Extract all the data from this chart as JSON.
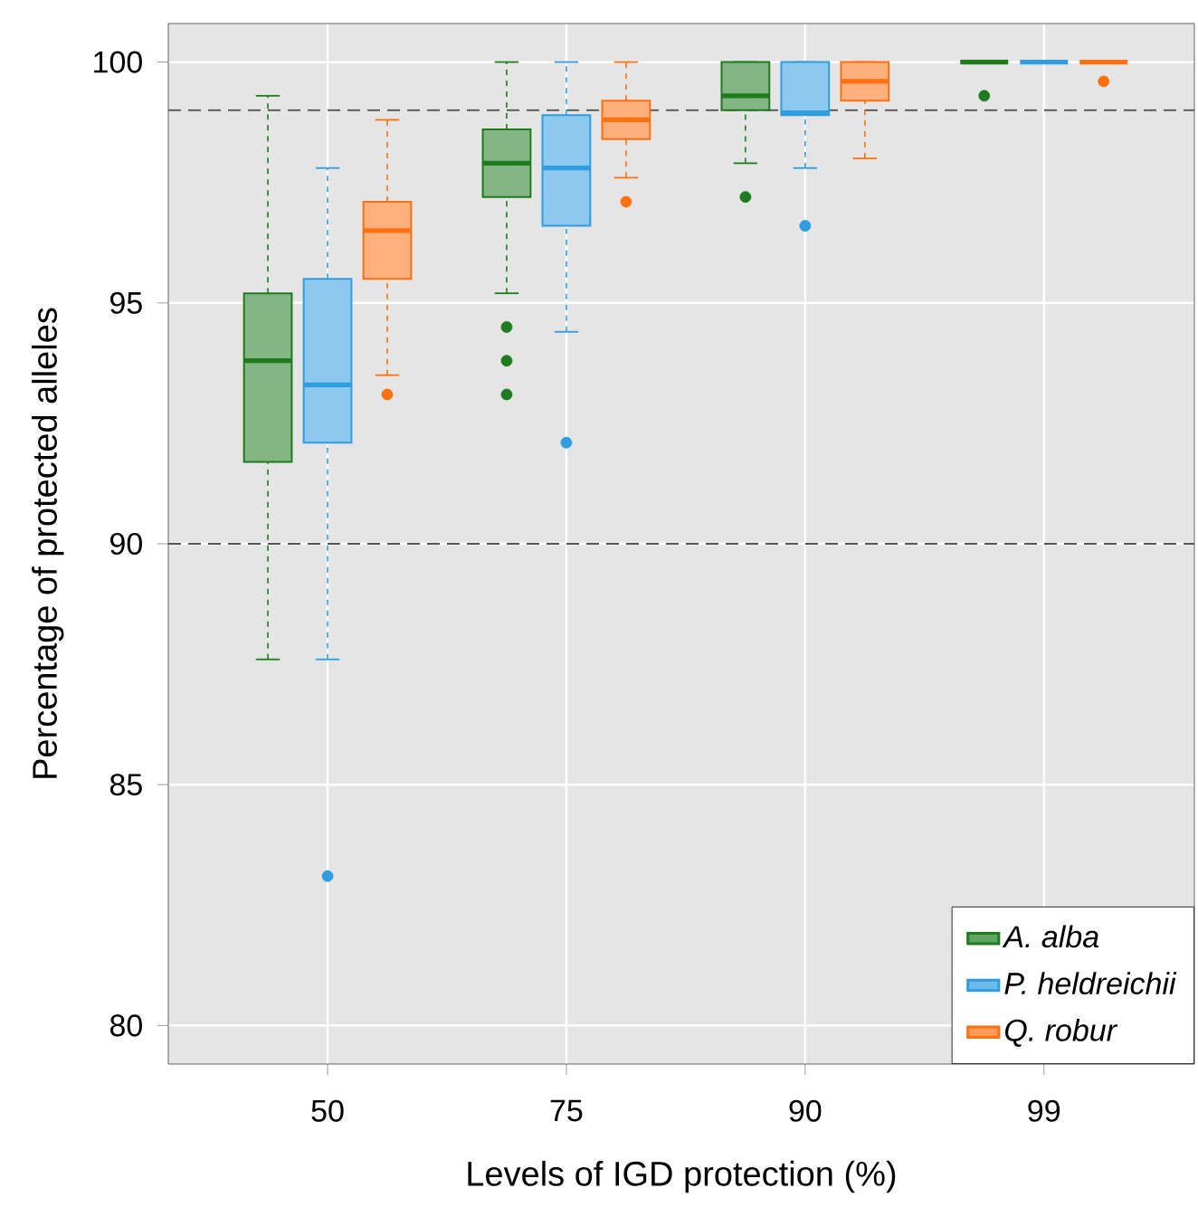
{
  "chart_data": {
    "type": "box",
    "xlabel": "Levels of IGD protection (%)",
    "ylabel": "Percentage of protected alleles",
    "categories": [
      "50",
      "75",
      "90",
      "99"
    ],
    "series": [
      {
        "name": "A. alba",
        "color": "#1e7b1e",
        "boxes": [
          {
            "low": 87.6,
            "q1": 91.7,
            "median": 93.8,
            "q3": 95.2,
            "high": 99.3
          },
          {
            "low": 95.2,
            "q1": 97.2,
            "median": 97.9,
            "q3": 98.6,
            "high": 100,
            "outliers": [
              94.5,
              93.8,
              93.1
            ]
          },
          {
            "low": 97.9,
            "q1": 99.0,
            "median": 99.3,
            "q3": 100,
            "high": 100,
            "outliers": [
              97.2
            ]
          },
          {
            "low": 100,
            "q1": 100,
            "median": 100,
            "q3": 100,
            "high": 100,
            "outliers": [
              99.3
            ]
          }
        ]
      },
      {
        "name": "P. heldreichii",
        "color": "#2f9de0",
        "boxes": [
          {
            "low": 87.6,
            "q1": 92.1,
            "median": 93.3,
            "q3": 95.5,
            "high": 97.8,
            "outliers": [
              83.1
            ]
          },
          {
            "low": 94.4,
            "q1": 96.6,
            "median": 97.8,
            "q3": 98.9,
            "high": 100,
            "outliers": [
              92.1
            ]
          },
          {
            "low": 97.8,
            "q1": 98.9,
            "median": 98.95,
            "q3": 100,
            "high": 100,
            "outliers": [
              96.6
            ]
          },
          {
            "low": 100,
            "q1": 100,
            "median": 100,
            "q3": 100,
            "high": 100
          }
        ]
      },
      {
        "name": "Q. robur",
        "color": "#ff7010",
        "boxes": [
          {
            "low": 93.5,
            "q1": 95.5,
            "median": 96.5,
            "q3": 97.1,
            "high": 98.8,
            "outliers": [
              93.1
            ]
          },
          {
            "low": 97.6,
            "q1": 98.4,
            "median": 98.8,
            "q3": 99.2,
            "high": 100,
            "outliers": [
              97.1
            ]
          },
          {
            "low": 98.0,
            "q1": 99.2,
            "median": 99.6,
            "q3": 100,
            "high": 100
          },
          {
            "low": 100,
            "q1": 100,
            "median": 100,
            "q3": 100,
            "high": 100,
            "outliers": [
              99.6
            ]
          }
        ]
      }
    ],
    "ylim": [
      79.2,
      100.8
    ],
    "yticks": [
      80,
      85,
      90,
      95,
      100
    ],
    "grid": true,
    "legend": "bottom right",
    "ref_lines": [
      {
        "axis": "y",
        "value": 99,
        "color": "#555555",
        "line_style": "dashed"
      },
      {
        "axis": "y",
        "value": 90,
        "color": "#555555",
        "line_style": "dashed"
      }
    ]
  }
}
